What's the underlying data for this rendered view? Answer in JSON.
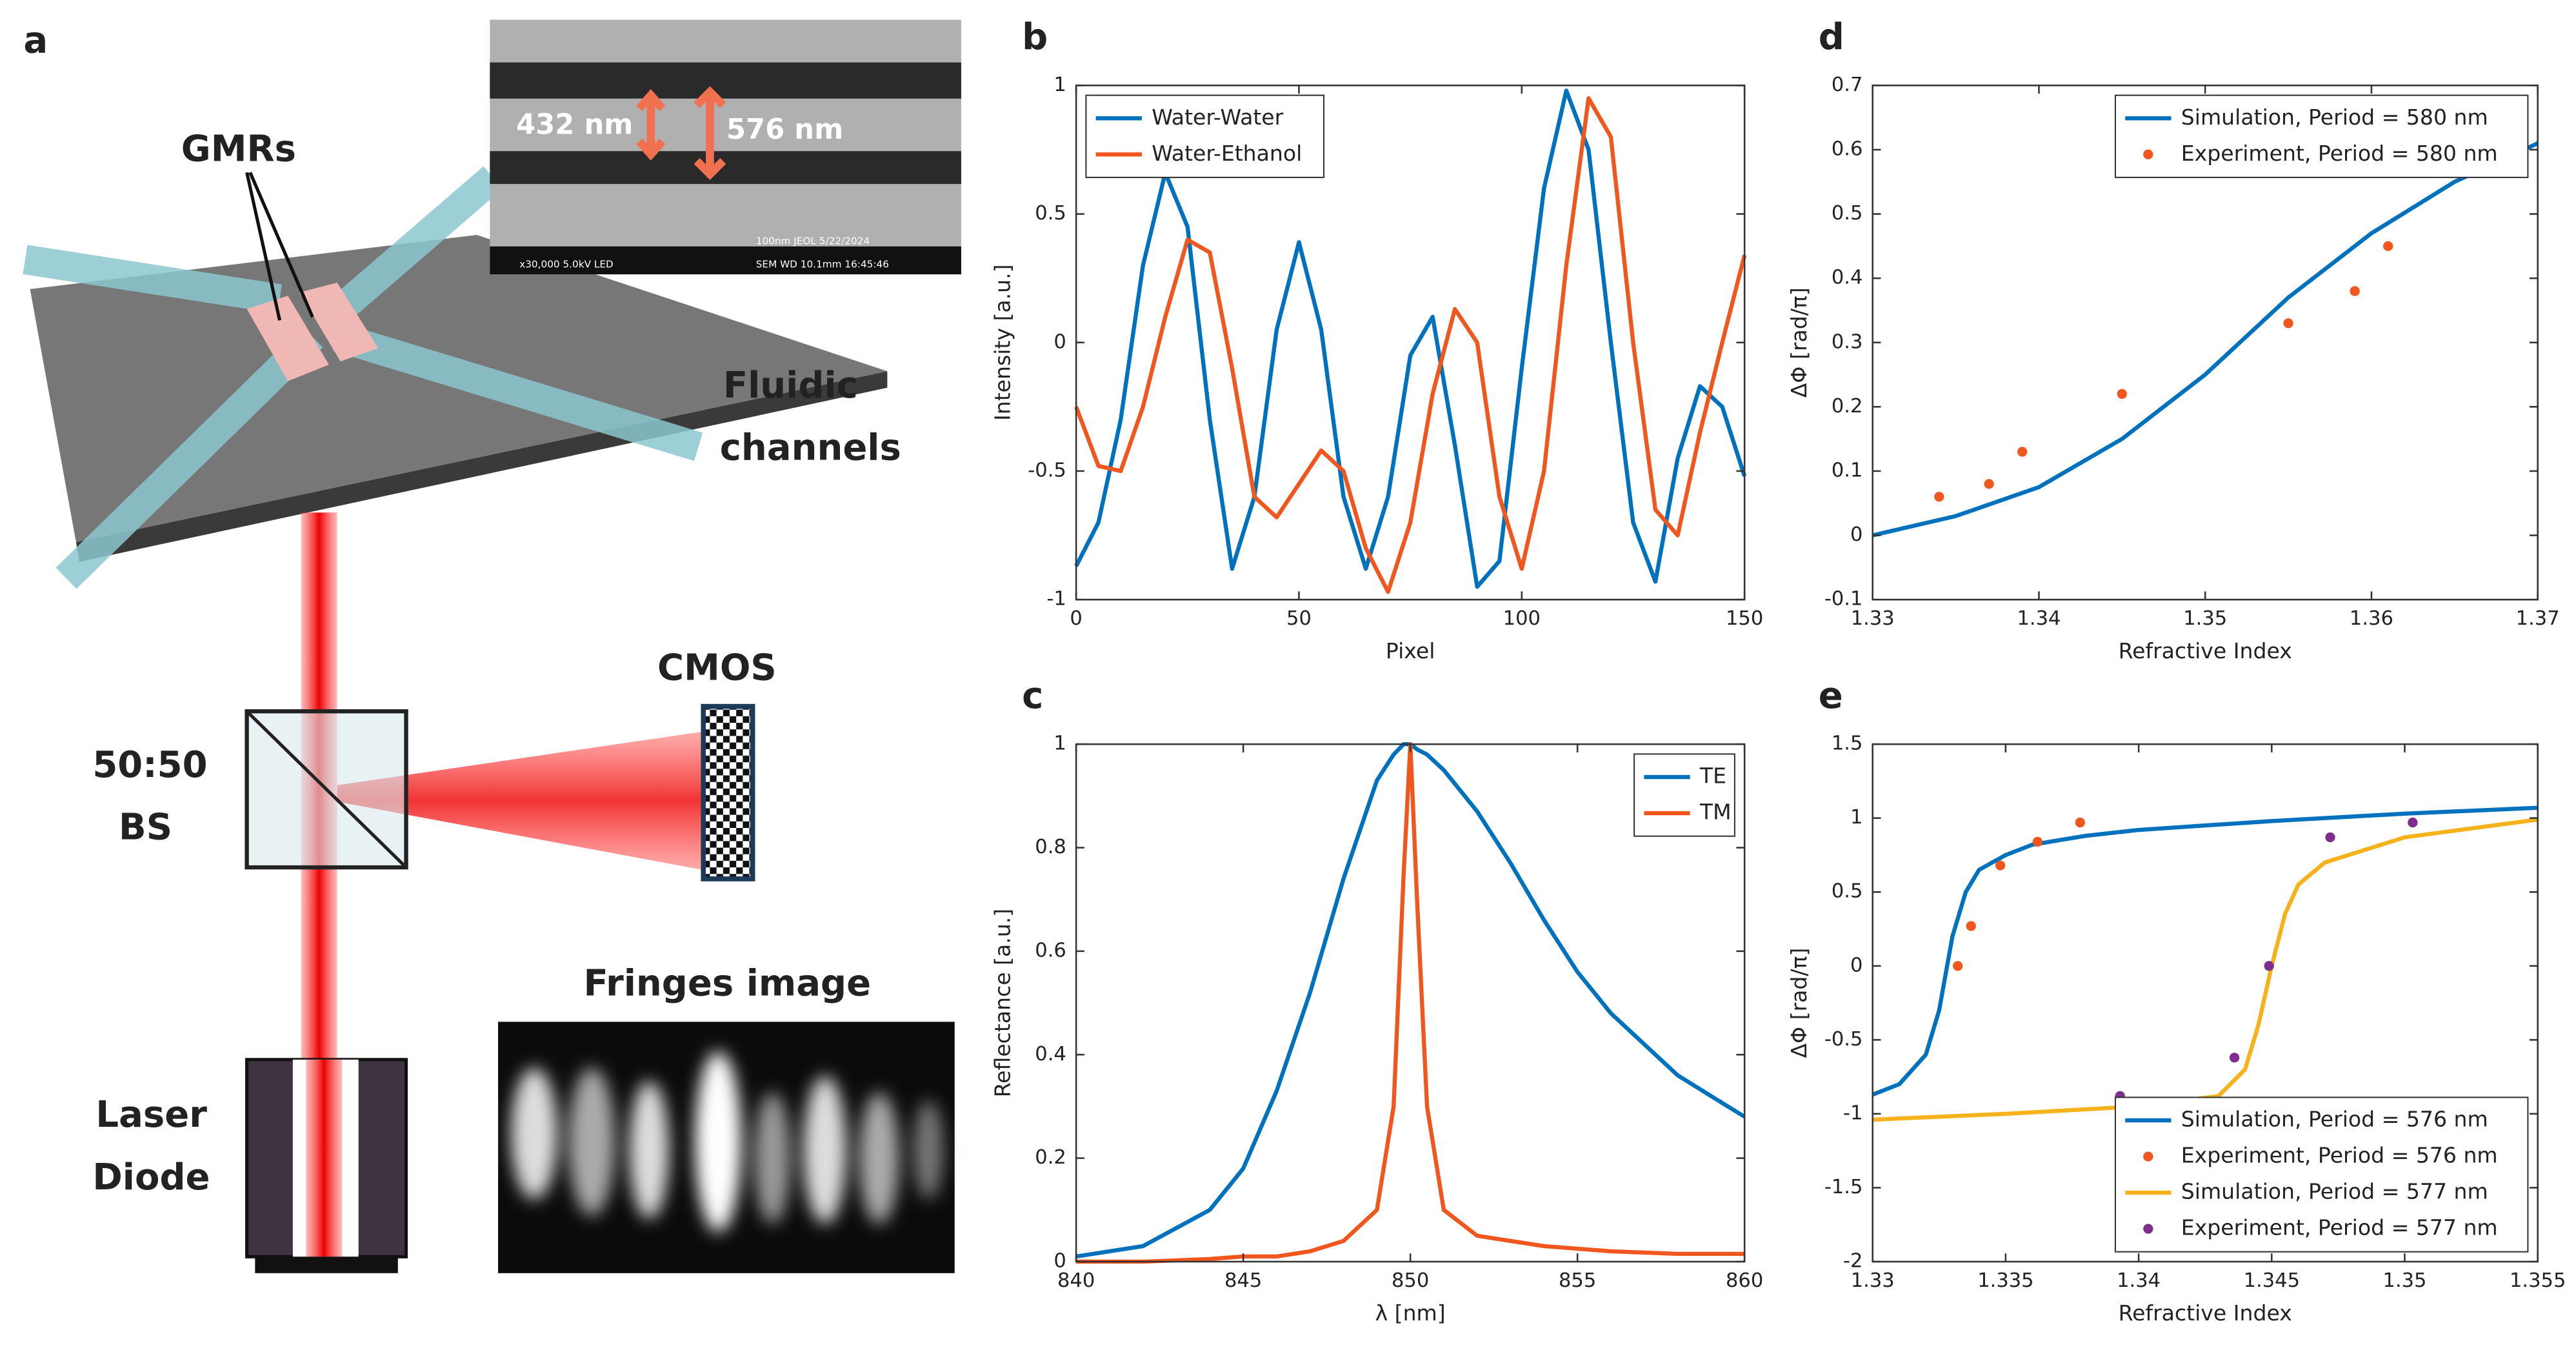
{
  "panel_a": {
    "label": "a",
    "gmrs": "GMRs",
    "fluidic": [
      "Fluidic",
      "channels"
    ],
    "cmos": "CMOS",
    "bs": [
      "50:50",
      "BS"
    ],
    "fringes": "Fringes image",
    "laser": [
      "Laser",
      "Diode"
    ],
    "sem": {
      "gap": "432 nm",
      "period": "576 nm",
      "footer_left": "x30,000     5.0kV  LED",
      "footer_right": "SEM     WD 10.1mm  16:45:46",
      "scale": "100nm JEOL      5/22/2024"
    }
  },
  "chart_data": [
    {
      "type": "line",
      "label": "b",
      "xlabel": "Pixel",
      "ylabel": "Intensity [a.u.]",
      "xlim": [
        0,
        150
      ],
      "ylim": [
        -1,
        1
      ],
      "xticks": [
        0,
        50,
        100,
        150
      ],
      "yticks": [
        -1,
        -0.5,
        0,
        0.5,
        1
      ],
      "legend": "upper left",
      "series": [
        {
          "name": "Water-Water",
          "color": "#0072bd",
          "style": "line",
          "x": [
            0,
            5,
            10,
            15,
            20,
            25,
            30,
            35,
            40,
            45,
            50,
            55,
            60,
            65,
            70,
            75,
            80,
            85,
            90,
            95,
            100,
            105,
            110,
            115,
            120,
            125,
            130,
            135,
            140,
            145,
            150
          ],
          "values": [
            -0.87,
            -0.7,
            -0.3,
            0.3,
            0.66,
            0.45,
            -0.3,
            -0.88,
            -0.6,
            0.05,
            0.39,
            0.05,
            -0.6,
            -0.88,
            -0.6,
            -0.05,
            0.1,
            -0.4,
            -0.95,
            -0.85,
            -0.1,
            0.6,
            0.98,
            0.75,
            0.0,
            -0.7,
            -0.93,
            -0.45,
            -0.17,
            -0.25,
            -0.52
          ]
        },
        {
          "name": "Water-Ethanol",
          "color": "#f0571f",
          "style": "line",
          "x": [
            0,
            5,
            10,
            15,
            20,
            25,
            30,
            35,
            40,
            45,
            50,
            55,
            60,
            65,
            70,
            75,
            80,
            85,
            90,
            95,
            100,
            105,
            110,
            115,
            120,
            125,
            130,
            135,
            140,
            145,
            150
          ],
          "values": [
            -0.25,
            -0.48,
            -0.5,
            -0.25,
            0.1,
            0.4,
            0.35,
            -0.1,
            -0.6,
            -0.68,
            -0.55,
            -0.42,
            -0.5,
            -0.8,
            -0.97,
            -0.7,
            -0.2,
            0.13,
            0.0,
            -0.6,
            -0.88,
            -0.5,
            0.3,
            0.95,
            0.8,
            0.0,
            -0.65,
            -0.75,
            -0.35,
            0.0,
            0.34
          ]
        }
      ]
    },
    {
      "type": "line",
      "label": "c",
      "xlabel": "λ [nm]",
      "ylabel": "Reflectance [a.u.]",
      "xlim": [
        840,
        860
      ],
      "ylim": [
        0,
        1
      ],
      "xticks": [
        840,
        845,
        850,
        855,
        860
      ],
      "yticks": [
        0,
        0.2,
        0.4,
        0.6,
        0.8,
        1
      ],
      "legend": "upper right",
      "series": [
        {
          "name": "TE",
          "color": "#0072bd",
          "style": "line",
          "x": [
            840,
            842,
            844,
            845,
            846,
            847,
            848,
            849,
            849.5,
            849.8,
            850,
            850.2,
            850.5,
            851,
            852,
            853,
            854,
            855,
            856,
            858,
            860
          ],
          "values": [
            0.01,
            0.03,
            0.1,
            0.18,
            0.33,
            0.52,
            0.74,
            0.93,
            0.98,
            1.0,
            1.0,
            0.99,
            0.98,
            0.95,
            0.87,
            0.77,
            0.66,
            0.56,
            0.48,
            0.36,
            0.28
          ]
        },
        {
          "name": "TM",
          "color": "#f0571f",
          "style": "line",
          "x": [
            840,
            842,
            844,
            845,
            846,
            847,
            848,
            849,
            849.5,
            849.8,
            850,
            850.2,
            850.5,
            851,
            852,
            853,
            854,
            855,
            856,
            858,
            860
          ],
          "values": [
            0.0,
            0.0,
            0.005,
            0.01,
            0.01,
            0.02,
            0.04,
            0.1,
            0.3,
            0.75,
            1.0,
            0.7,
            0.3,
            0.1,
            0.05,
            0.04,
            0.03,
            0.025,
            0.02,
            0.015,
            0.015
          ]
        }
      ]
    },
    {
      "type": "line",
      "label": "d",
      "xlabel": "Refractive Index",
      "ylabel": "ΔΦ [rad/π]",
      "xlim": [
        1.33,
        1.37
      ],
      "ylim": [
        -0.1,
        0.7
      ],
      "xticks": [
        1.33,
        1.34,
        1.35,
        1.36,
        1.37
      ],
      "yticks": [
        -0.1,
        0,
        0.1,
        0.2,
        0.3,
        0.4,
        0.5,
        0.6,
        0.7
      ],
      "legend": "upper right",
      "series": [
        {
          "name": "Simulation, Period = 580 nm",
          "color": "#0072bd",
          "style": "line",
          "x": [
            1.33,
            1.335,
            1.34,
            1.345,
            1.35,
            1.355,
            1.36,
            1.365,
            1.37
          ],
          "values": [
            0.0,
            0.03,
            0.075,
            0.15,
            0.25,
            0.37,
            0.47,
            0.55,
            0.61
          ]
        },
        {
          "name": "Experiment, Period = 580 nm",
          "color": "#f0571f",
          "style": "marker",
          "x": [
            1.334,
            1.337,
            1.339,
            1.345,
            1.355,
            1.359,
            1.361
          ],
          "values": [
            0.06,
            0.08,
            0.13,
            0.22,
            0.33,
            0.38,
            0.45
          ]
        }
      ]
    },
    {
      "type": "line",
      "label": "e",
      "xlabel": "Refractive Index",
      "ylabel": "ΔΦ [rad/π]",
      "xlim": [
        1.33,
        1.355
      ],
      "ylim": [
        -2,
        1.5
      ],
      "xticks": [
        1.33,
        1.335,
        1.34,
        1.345,
        1.35,
        1.355
      ],
      "yticks": [
        -2,
        -1.5,
        -1,
        -0.5,
        0,
        0.5,
        1,
        1.5
      ],
      "legend": "lower right",
      "series": [
        {
          "name": "Simulation, Period = 576 nm",
          "color": "#0072bd",
          "style": "line",
          "x": [
            1.33,
            1.331,
            1.332,
            1.3325,
            1.333,
            1.3335,
            1.334,
            1.335,
            1.336,
            1.338,
            1.34,
            1.345,
            1.35,
            1.355
          ],
          "values": [
            -0.87,
            -0.8,
            -0.6,
            -0.3,
            0.2,
            0.5,
            0.65,
            0.75,
            0.82,
            0.88,
            0.92,
            0.98,
            1.03,
            1.07
          ]
        },
        {
          "name": "Experiment, Period = 576 nm",
          "color": "#f0571f",
          "style": "marker",
          "x": [
            1.3332,
            1.3337,
            1.3348,
            1.3362,
            1.3378
          ],
          "values": [
            0.0,
            0.27,
            0.68,
            0.84,
            0.97
          ]
        },
        {
          "name": "Simulation, Period = 577 nm",
          "color": "#f5b21b",
          "style": "line",
          "x": [
            1.33,
            1.335,
            1.34,
            1.343,
            1.344,
            1.3445,
            1.345,
            1.3455,
            1.346,
            1.347,
            1.35,
            1.355
          ],
          "values": [
            -1.04,
            -1.0,
            -0.95,
            -0.88,
            -0.7,
            -0.4,
            0.0,
            0.35,
            0.55,
            0.7,
            0.87,
            0.99
          ]
        },
        {
          "name": "Experiment, Period = 577 nm",
          "color": "#7e2f8e",
          "style": "marker",
          "x": [
            1.3393,
            1.3436,
            1.3449,
            1.3472,
            1.3503
          ],
          "values": [
            -0.88,
            -0.62,
            0.0,
            0.87,
            0.97
          ]
        }
      ]
    }
  ]
}
